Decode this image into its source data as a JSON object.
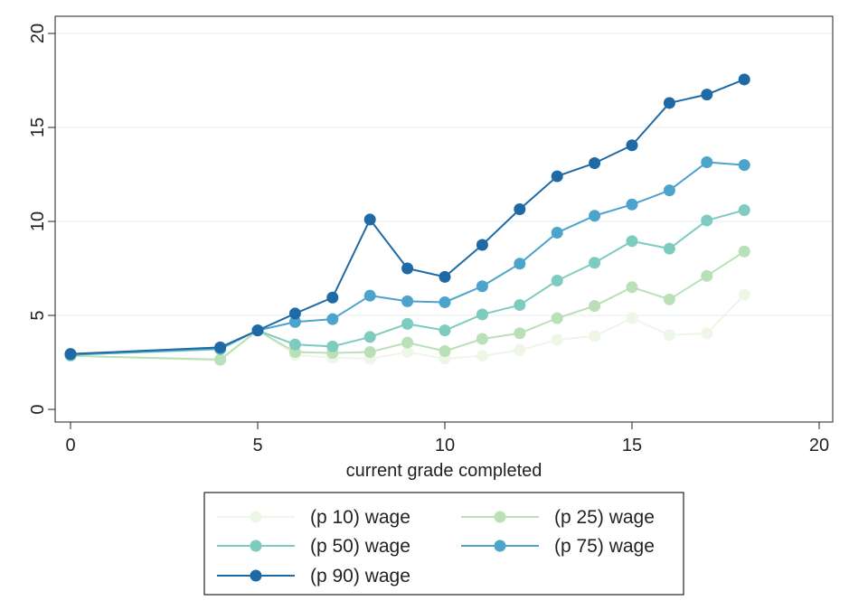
{
  "chart_data": {
    "type": "line",
    "title": "",
    "xlabel": "current grade completed",
    "ylabel": "",
    "xlim": [
      0,
      20
    ],
    "ylim": [
      0,
      20
    ],
    "x_ticks": [
      "0",
      "5",
      "10",
      "15",
      "20"
    ],
    "y_ticks": [
      "0",
      "5",
      "10",
      "15",
      "20"
    ],
    "grid": "horizontal",
    "legend_position": "bottom",
    "x": [
      0,
      4,
      5,
      6,
      7,
      8,
      9,
      10,
      11,
      12,
      13,
      14,
      15,
      16,
      17,
      18
    ],
    "series": [
      {
        "name": "(p 10) wage",
        "color": "#eef6e8",
        "values": [
          2.85,
          2.6,
          4.2,
          2.9,
          2.75,
          2.7,
          3.05,
          2.7,
          2.85,
          3.15,
          3.7,
          3.9,
          4.85,
          3.95,
          4.05,
          6.1
        ]
      },
      {
        "name": "(p 25) wage",
        "color": "#b9e0b6",
        "values": [
          2.85,
          2.65,
          4.2,
          3.05,
          3.0,
          3.05,
          3.55,
          3.1,
          3.75,
          4.05,
          4.85,
          5.5,
          6.5,
          5.85,
          7.1,
          8.4
        ]
      },
      {
        "name": "(p 50) wage",
        "color": "#7ecbc0",
        "values": [
          2.9,
          3.2,
          4.2,
          3.45,
          3.35,
          3.85,
          4.55,
          4.2,
          5.05,
          5.55,
          6.85,
          7.8,
          8.95,
          8.55,
          10.05,
          10.6
        ]
      },
      {
        "name": "(p 75) wage",
        "color": "#4ca3cc",
        "values": [
          2.9,
          3.25,
          4.2,
          4.65,
          4.8,
          6.05,
          5.75,
          5.7,
          6.55,
          7.75,
          9.4,
          10.3,
          10.9,
          11.65,
          13.15,
          13.0
        ]
      },
      {
        "name": "(p 90) wage",
        "color": "#1f6aa5",
        "values": [
          2.95,
          3.3,
          4.2,
          5.1,
          5.95,
          10.1,
          7.5,
          7.05,
          8.75,
          10.65,
          12.4,
          13.1,
          14.05,
          16.3,
          16.75,
          17.55
        ]
      }
    ]
  }
}
